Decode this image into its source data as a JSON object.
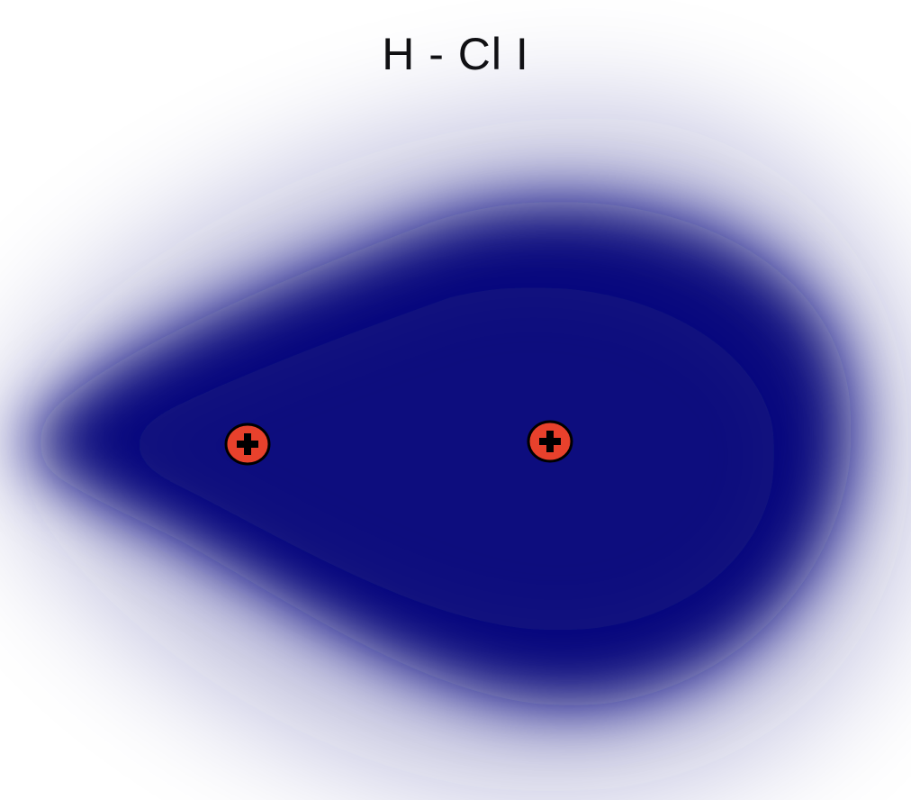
{
  "title": "H - Cl I",
  "colors": {
    "cloud": "#070b7e",
    "nucleus_fill": "#e8412c",
    "nucleus_stroke": "#000000",
    "background": "#ffffff"
  },
  "nuclei": [
    {
      "name": "hydrogen-nucleus",
      "symbol": "plus"
    },
    {
      "name": "chlorine-nucleus",
      "symbol": "plus"
    }
  ]
}
